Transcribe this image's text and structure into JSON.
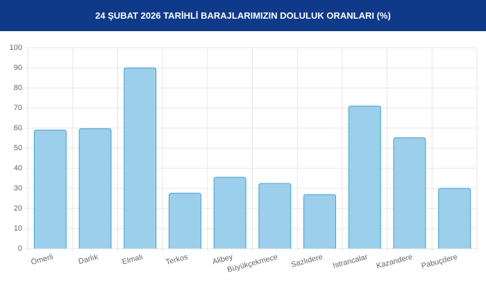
{
  "chart_data": {
    "type": "bar",
    "title": "24 ŞUBAT 2026 TARİHLİ BARAJLARIMIZIN DOLULUK ORANLARI (%)",
    "categories": [
      "Ömerli",
      "Darlık",
      "Elmalı",
      "Terkos",
      "Alibey",
      "Büyükçekmece",
      "Sazlıdere",
      "Istrancalar",
      "Kazandere",
      "Pabuçdere"
    ],
    "values": [
      59,
      59.7,
      90,
      27.6,
      35.5,
      32.4,
      26.9,
      71,
      55.2,
      30
    ],
    "color": "#9ccfec",
    "border_color": "#3b9fd1",
    "ylim": [
      0,
      100
    ],
    "yticks": [
      0,
      10,
      20,
      30,
      40,
      50,
      60,
      70,
      80,
      90,
      100
    ],
    "grid": true
  }
}
